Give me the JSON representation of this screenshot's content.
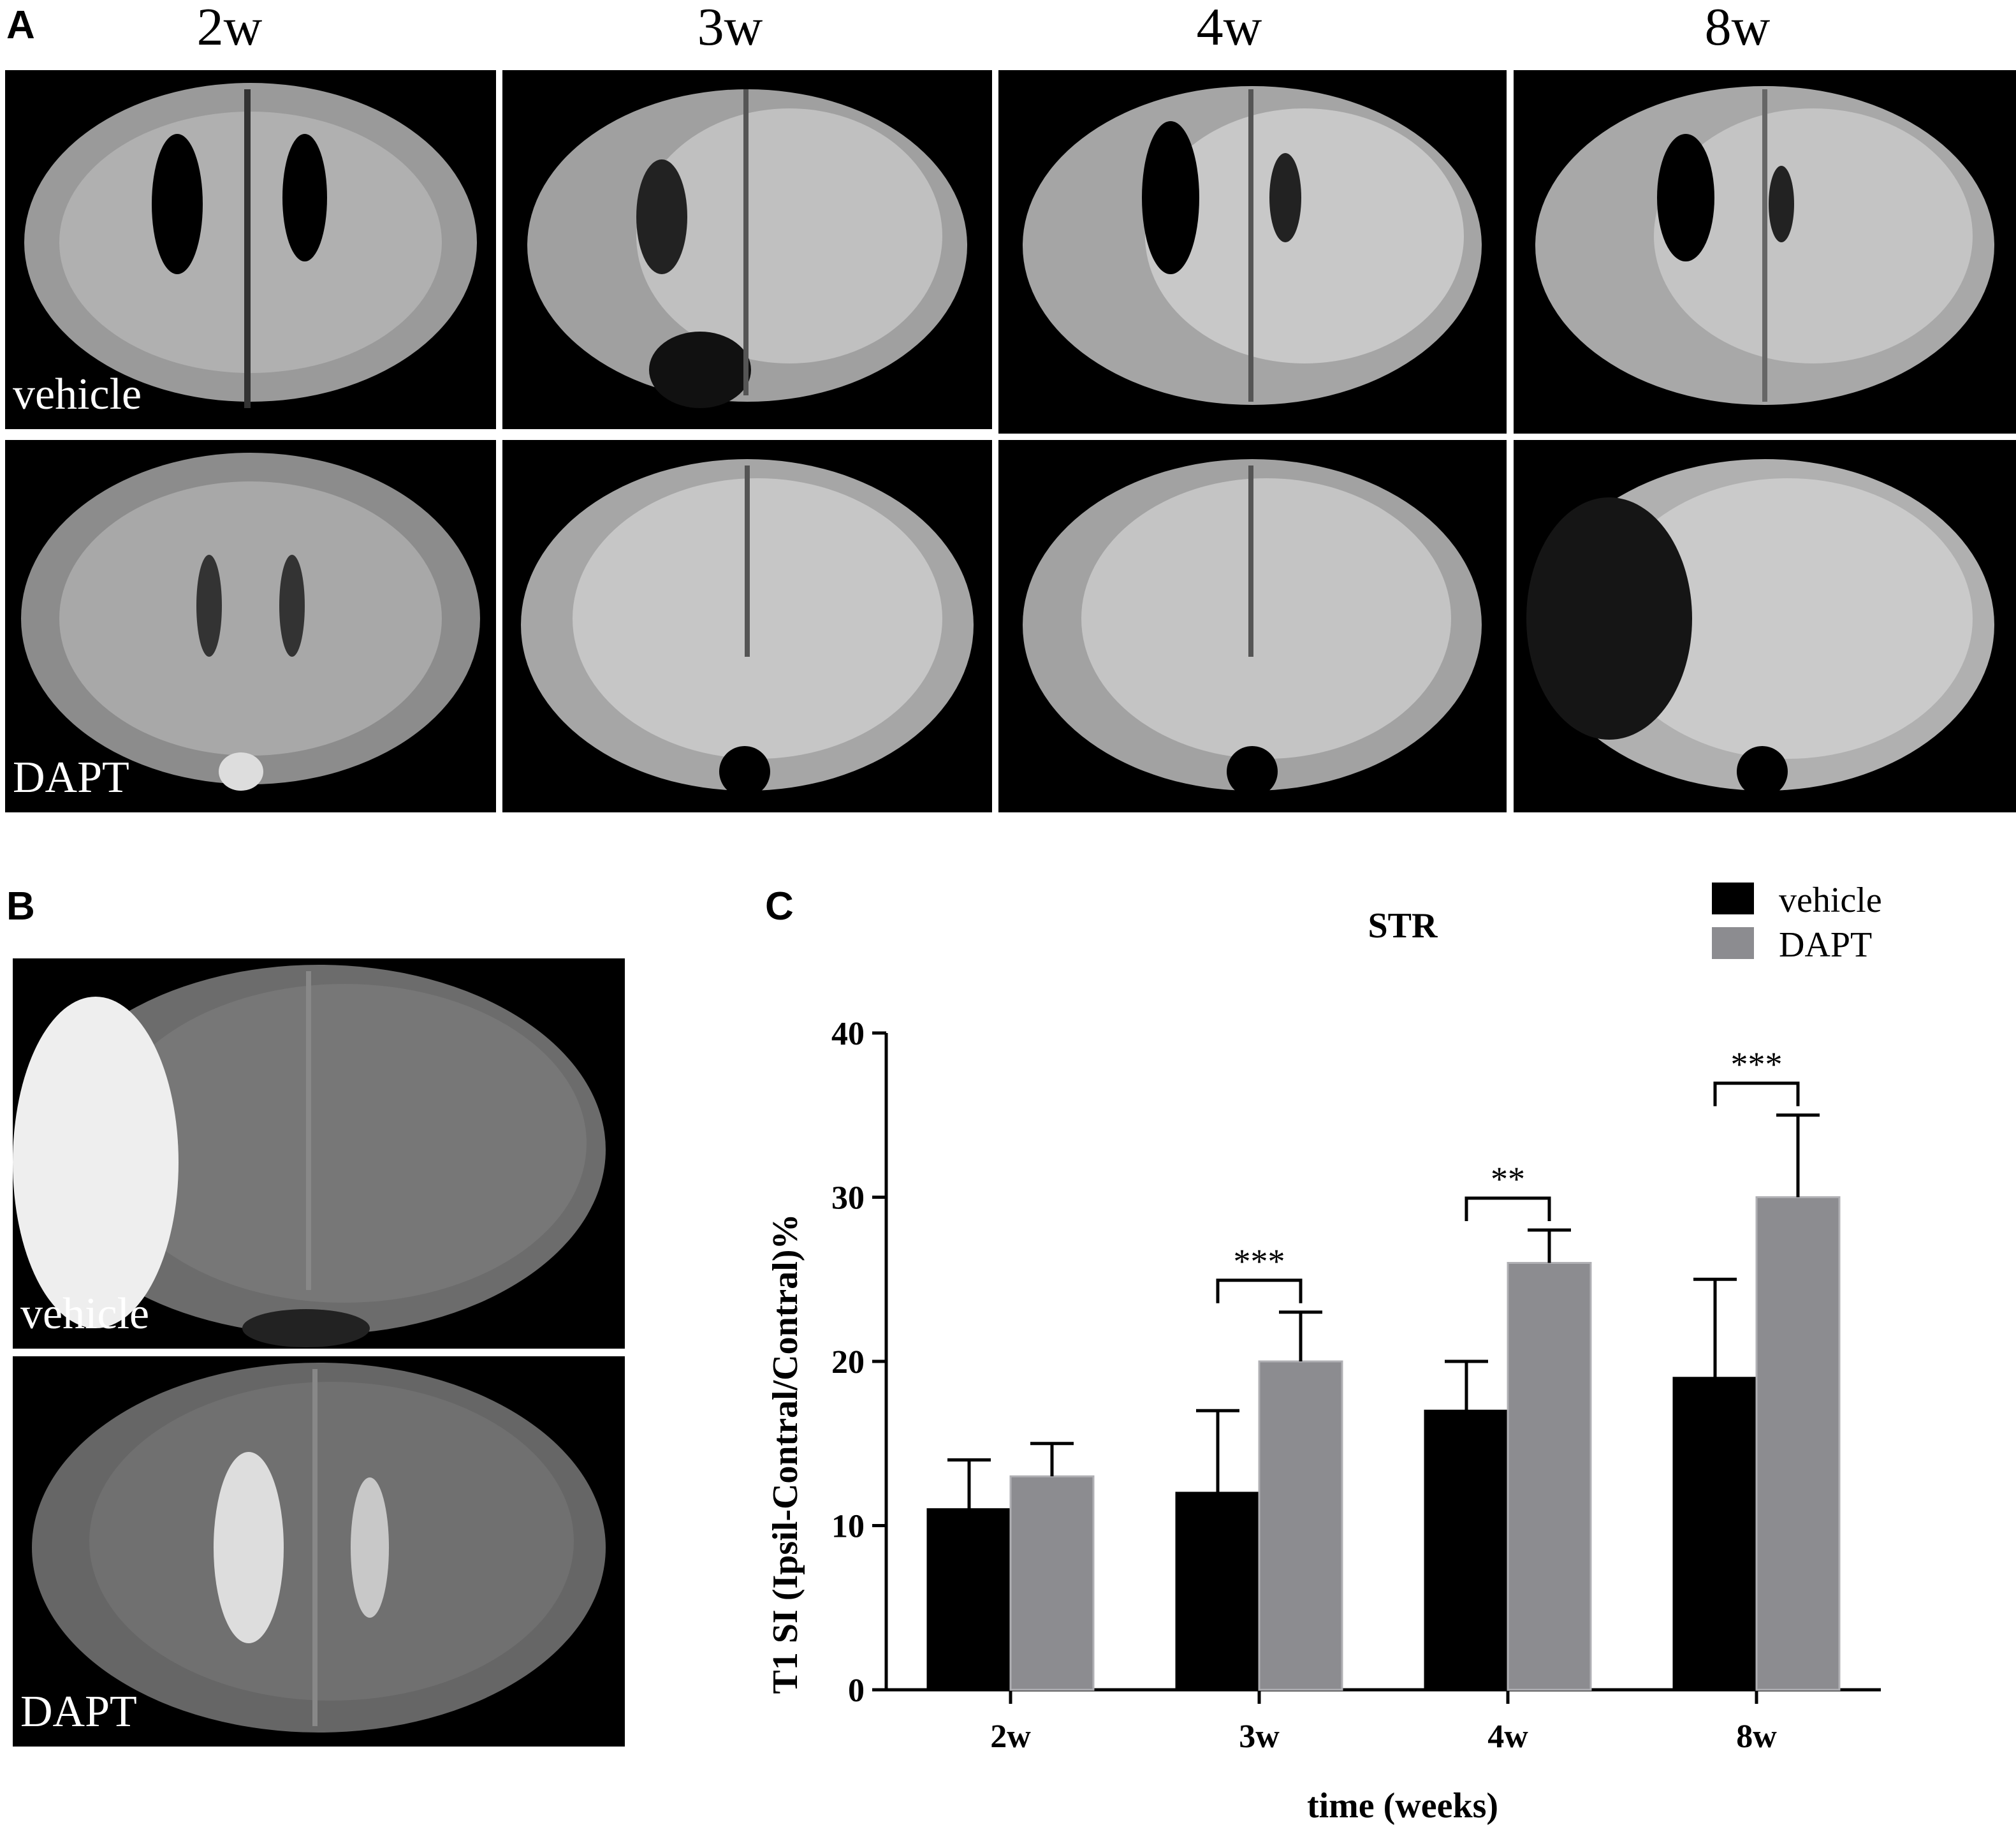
{
  "panel_a": {
    "letter": "A",
    "columns": [
      "2w",
      "3w",
      "4w",
      "8w"
    ],
    "rows": [
      "vehicle",
      "DAPT"
    ]
  },
  "panel_b": {
    "letter": "B",
    "rows": [
      "vehicle",
      "DAPT"
    ]
  },
  "panel_c": {
    "letter": "C"
  },
  "chart_data": {
    "type": "bar",
    "title": "STR",
    "xlabel": "time (weeks)",
    "ylabel": "T1 SI (Ipsil-Contral/Contral)%",
    "categories": [
      "2w",
      "3w",
      "4w",
      "8w"
    ],
    "ylim": [
      0,
      40
    ],
    "yticks": [
      0,
      10,
      20,
      30,
      40
    ],
    "legend_position": "top-right",
    "series": [
      {
        "name": "vehicle",
        "color": "#000000",
        "values": [
          11,
          12,
          17,
          19
        ],
        "errors": [
          3,
          5,
          3,
          6
        ]
      },
      {
        "name": "DAPT",
        "color": "#8c8c90",
        "values": [
          13,
          20,
          26,
          30
        ],
        "errors": [
          2,
          3,
          2,
          5
        ]
      }
    ],
    "significance": [
      "",
      "***",
      "**",
      "***"
    ]
  }
}
